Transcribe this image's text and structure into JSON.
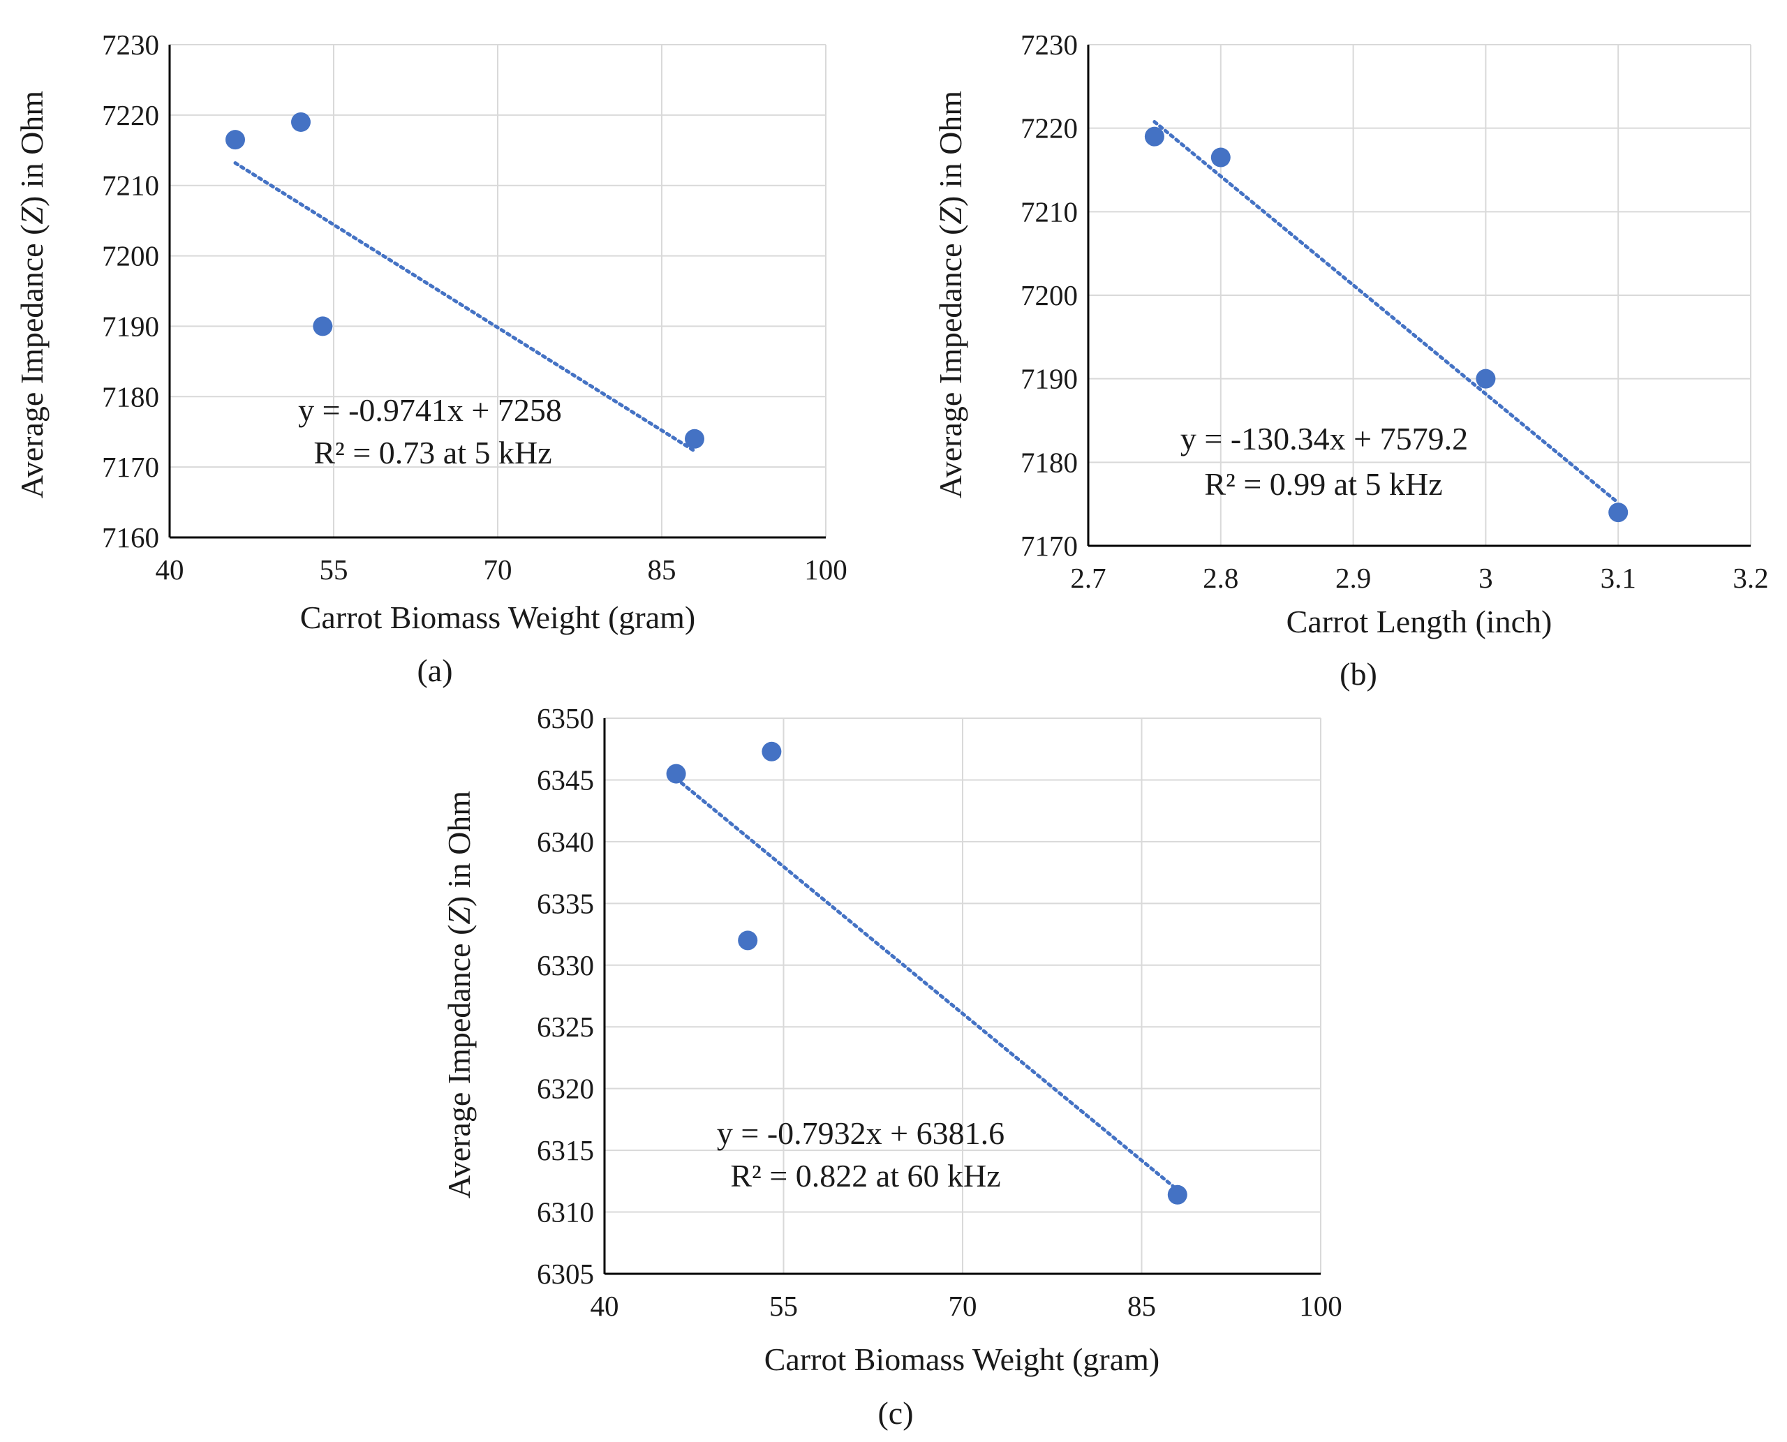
{
  "colors": {
    "point": "#4472C4",
    "trendline": "#4472C4",
    "grid": "#d9d9d9",
    "axis": "#000000"
  },
  "chart_data": [
    {
      "type": "scatter",
      "panel": "a",
      "caption": "(a)",
      "xlabel": "Carrot Biomass Weight  (gram)",
      "ylabel_parts": [
        "Average  Impedance  (",
        "Z",
        ")  in Ohm"
      ],
      "xlim": [
        40,
        100
      ],
      "ylim": [
        7160,
        7230
      ],
      "xticks": [
        40,
        55,
        70,
        85,
        100
      ],
      "yticks": [
        7160,
        7170,
        7180,
        7190,
        7200,
        7210,
        7220,
        7230
      ],
      "xticklabels": [
        "40",
        "55",
        "70",
        "85",
        "100"
      ],
      "yticklabels": [
        "7160",
        "7170",
        "7180",
        "7190",
        "7200",
        "7210",
        "7220",
        "7230"
      ],
      "x": [
        46,
        52,
        54,
        88
      ],
      "y": [
        7216.5,
        7219,
        7190,
        7174
      ],
      "trendline": {
        "slope": -0.9741,
        "intercept": 7258,
        "x_range": [
          46,
          88
        ]
      },
      "equation": "y = -0.9741x + 7258",
      "r2_text": "R² = 0.73 at 5 kHz"
    },
    {
      "type": "scatter",
      "panel": "b",
      "caption": "(b)",
      "xlabel": "Carrot Length  (inch)",
      "ylabel_parts": [
        "Average  Impedance  (",
        "Z",
        ")  in Ohm"
      ],
      "xlim": [
        2.7,
        3.2
      ],
      "ylim": [
        7170,
        7230
      ],
      "xticks": [
        2.7,
        2.8,
        2.9,
        3.0,
        3.1,
        3.2
      ],
      "yticks": [
        7170,
        7180,
        7190,
        7200,
        7210,
        7220,
        7230
      ],
      "xticklabels": [
        "2.7",
        "2.8",
        "2.9",
        "3",
        "3.1",
        "3.2"
      ],
      "yticklabels": [
        "7170",
        "7180",
        "7190",
        "7200",
        "7210",
        "7220",
        "7230"
      ],
      "x": [
        2.75,
        2.8,
        3.0,
        3.1
      ],
      "y": [
        7219,
        7216.5,
        7190,
        7174
      ],
      "trendline": {
        "slope": -130.34,
        "intercept": 7579.2,
        "x_range": [
          2.75,
          3.1
        ]
      },
      "equation": "y = -130.34x + 7579.2",
      "r2_text": "R² = 0.99 at 5 kHz"
    },
    {
      "type": "scatter",
      "panel": "c",
      "caption": "(c)",
      "xlabel": "Carrot Biomass Weight  (gram)",
      "ylabel_parts": [
        "Average  Impedance  (",
        "Z",
        ")  in Ohm"
      ],
      "xlim": [
        40,
        100
      ],
      "ylim": [
        6305,
        6350
      ],
      "xticks": [
        40,
        55,
        70,
        85,
        100
      ],
      "yticks": [
        6305,
        6310,
        6315,
        6320,
        6325,
        6330,
        6335,
        6340,
        6345,
        6350
      ],
      "xticklabels": [
        "40",
        "55",
        "70",
        "85",
        "100"
      ],
      "yticklabels": [
        "6305",
        "6310",
        "6315",
        "6320",
        "6325",
        "6330",
        "6335",
        "6340",
        "6345",
        "6350"
      ],
      "x": [
        46,
        52,
        54,
        88
      ],
      "y": [
        6345.5,
        6332,
        6347.3,
        6311.4
      ],
      "trendline": {
        "slope": -0.7932,
        "intercept": 6381.6,
        "x_range": [
          46,
          88
        ]
      },
      "equation": "y = -0.7932x + 6381.6",
      "r2_text": "R² = 0.822 at 60 kHz"
    }
  ]
}
